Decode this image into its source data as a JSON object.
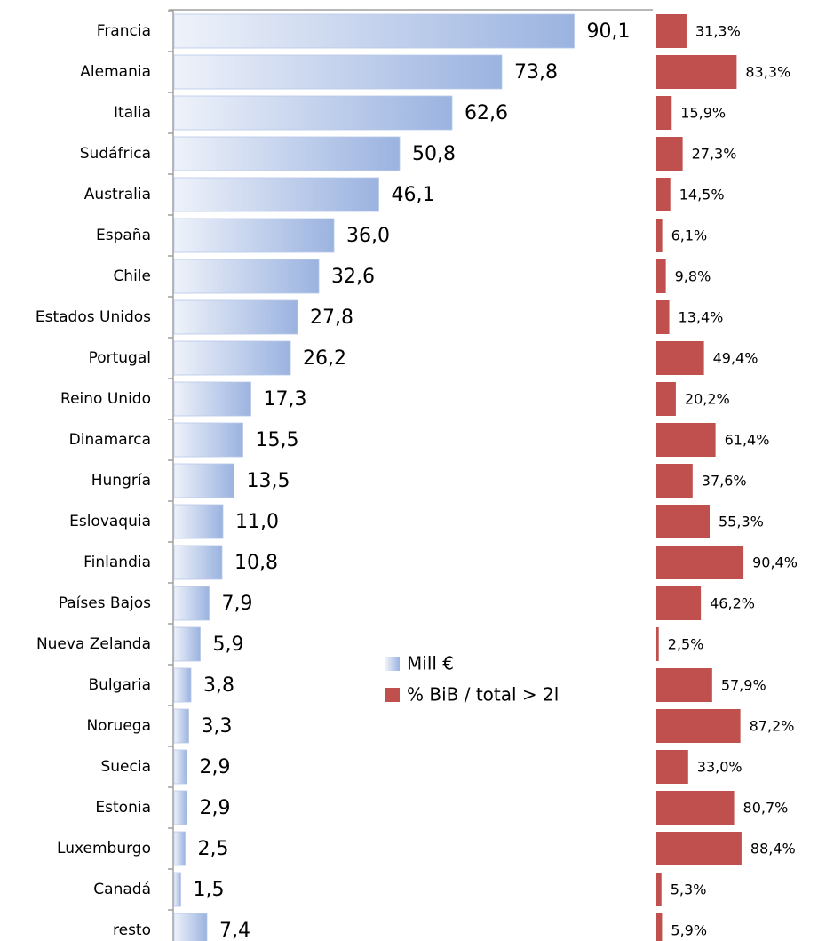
{
  "chart_data": {
    "type": "bar",
    "orientation": "horizontal",
    "categories": [
      "Francia",
      "Alemania",
      "Italia",
      "Sudáfrica",
      "Australia",
      "España",
      "Chile",
      "Estados Unidos",
      "Portugal",
      "Reino Unido",
      "Dinamarca",
      "Hungría",
      "Eslovaquia",
      "Finlandia",
      "Países Bajos",
      "Nueva Zelanda",
      "Bulgaria",
      "Noruega",
      "Suecia",
      "Estonia",
      "Luxemburgo",
      "Canadá",
      "resto"
    ],
    "series": [
      {
        "name": "Mill €",
        "color": "#9bb3e0",
        "values": [
          90.1,
          73.8,
          62.6,
          50.8,
          46.1,
          36.0,
          32.6,
          27.8,
          26.2,
          17.3,
          15.5,
          13.5,
          11.0,
          10.8,
          7.9,
          5.9,
          3.8,
          3.3,
          2.9,
          2.9,
          2.5,
          1.5,
          7.4
        ],
        "value_labels": [
          "90,1",
          "73,8",
          "62,6",
          "50,8",
          "46,1",
          "36,0",
          "32,6",
          "27,8",
          "26,2",
          "17,3",
          "15,5",
          "13,5",
          "11,0",
          "10,8",
          "7,9",
          "5,9",
          "3,8",
          "3,3",
          "2,9",
          "2,9",
          "2,5",
          "1,5",
          "7,4"
        ]
      },
      {
        "name": "% BiB / total > 2l",
        "color": "#c0504d",
        "values": [
          31.3,
          83.3,
          15.9,
          27.3,
          14.5,
          6.1,
          9.8,
          13.4,
          49.4,
          20.2,
          61.4,
          37.6,
          55.3,
          90.4,
          46.2,
          2.5,
          57.9,
          87.2,
          33.0,
          80.7,
          88.4,
          5.3,
          5.9
        ],
        "value_labels": [
          "31,3%",
          "83,3%",
          "15,9%",
          "27,3%",
          "14,5%",
          "6,1%",
          "9,8%",
          "13,4%",
          "49,4%",
          "20,2%",
          "61,4%",
          "37,6%",
          "55,3%",
          "90,4%",
          "46,2%",
          "2,5%",
          "57,9%",
          "87,2%",
          "33,0%",
          "80,7%",
          "88,4%",
          "5,3%",
          "5,9%"
        ]
      }
    ]
  }
}
